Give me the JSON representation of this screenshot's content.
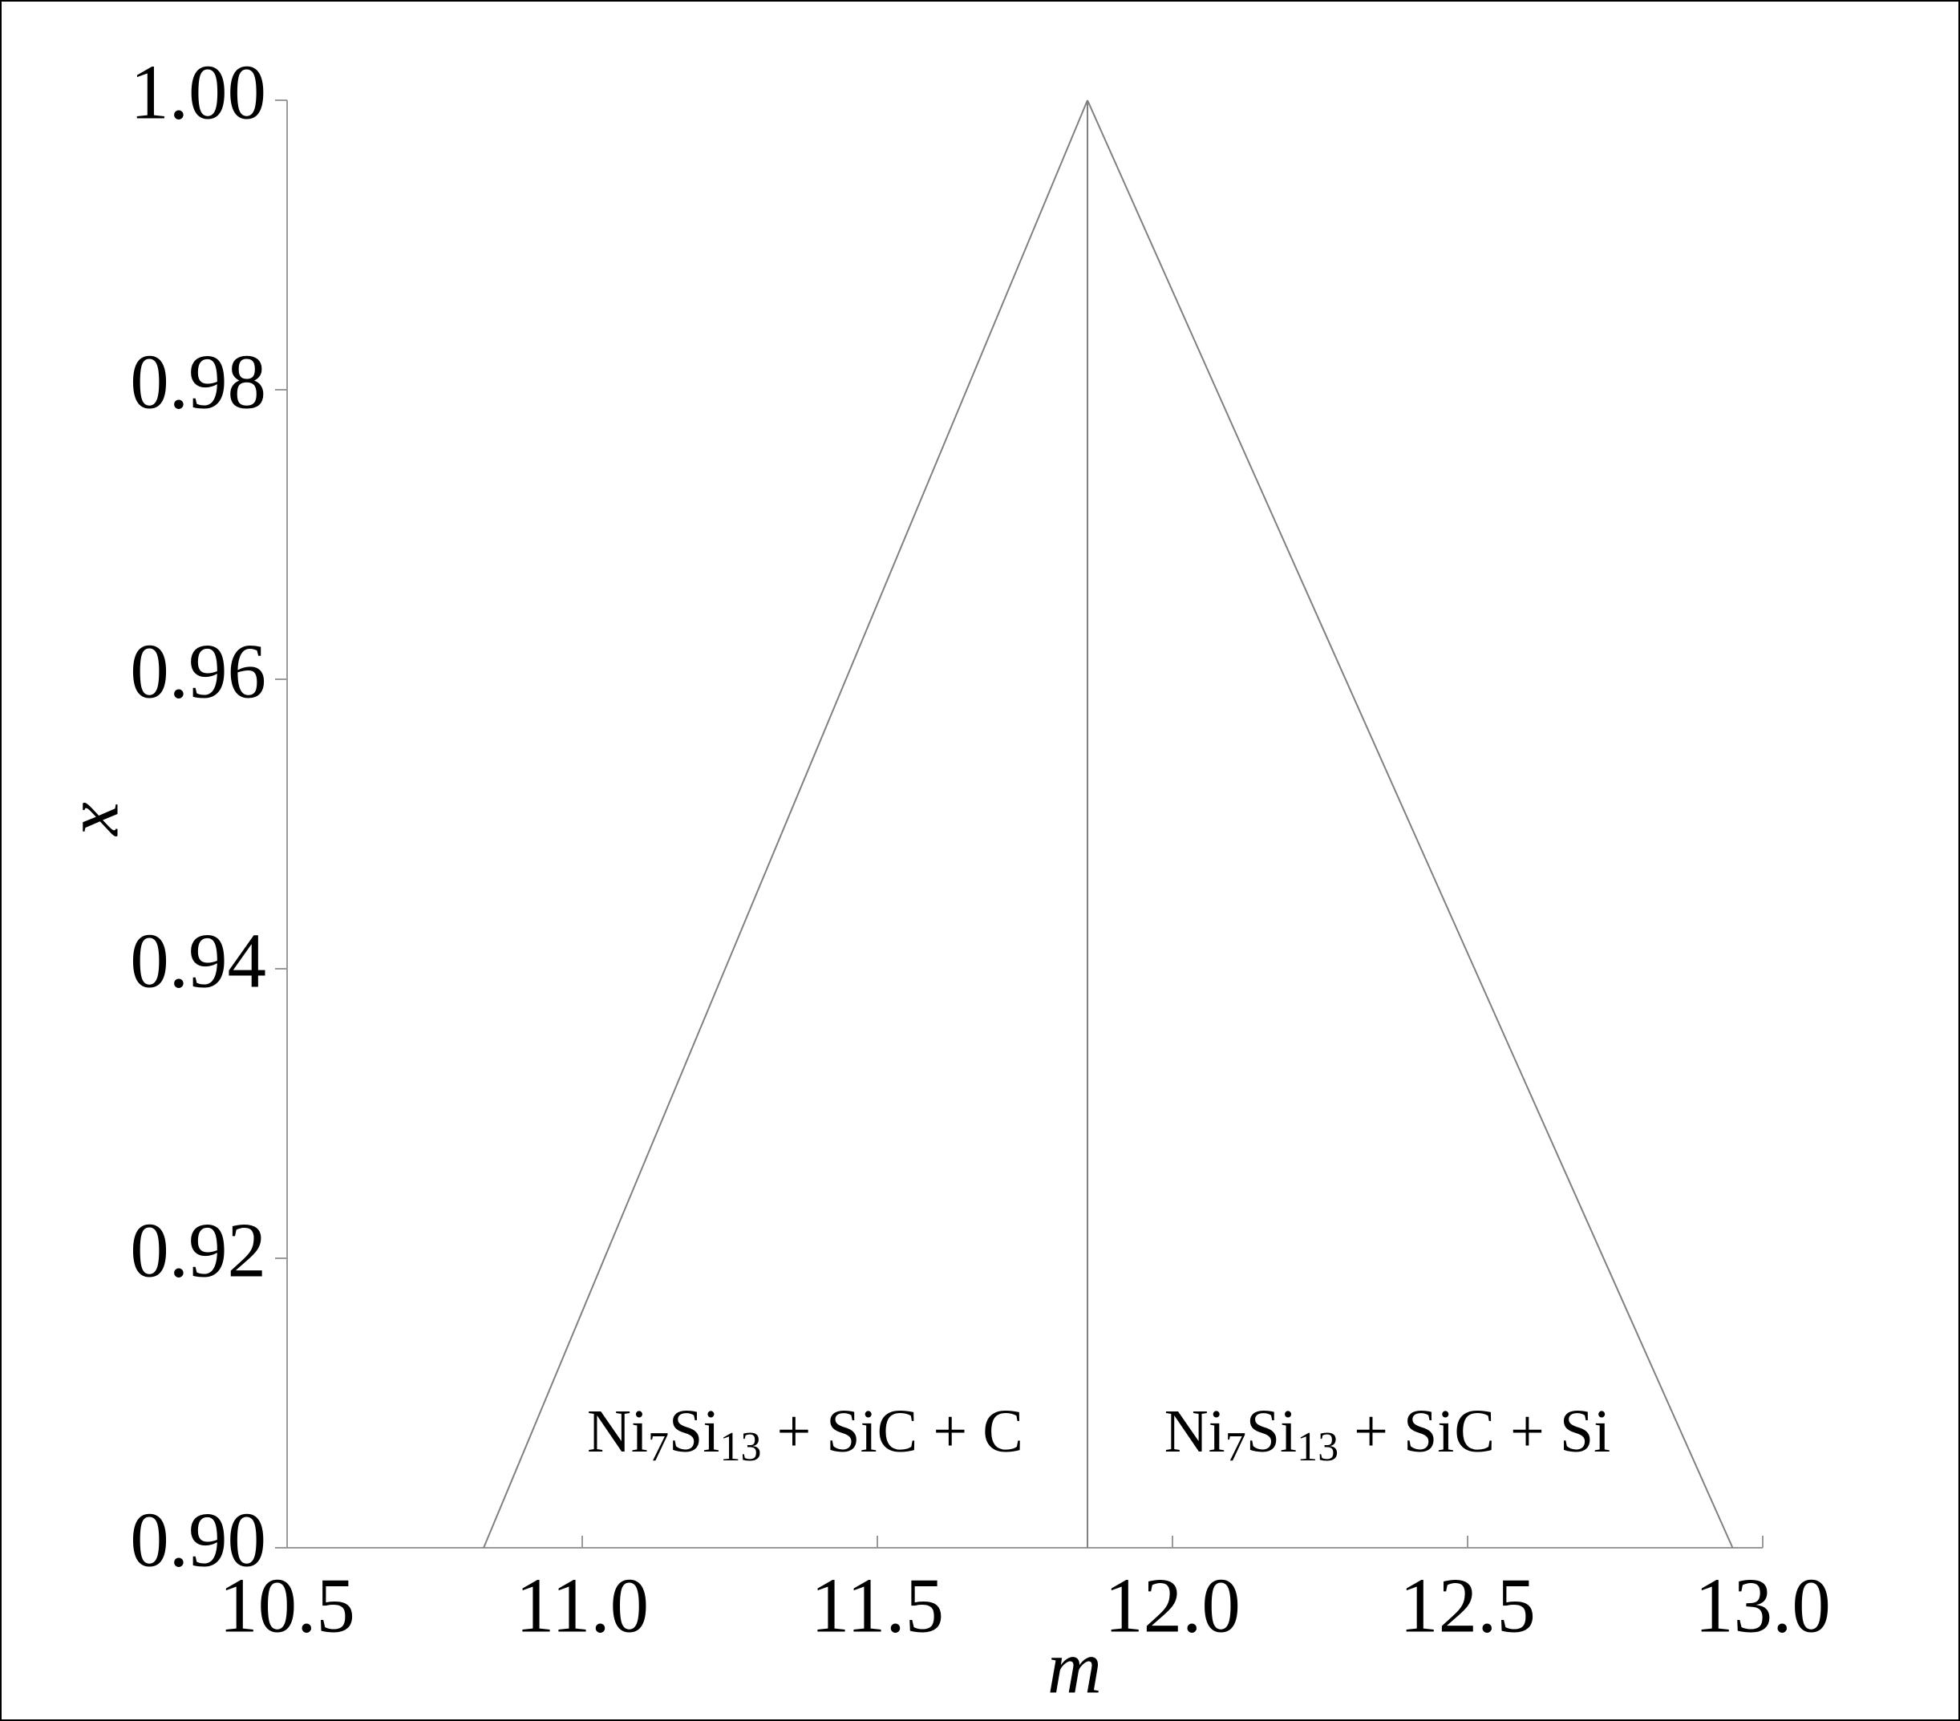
{
  "chart_data": {
    "type": "line",
    "xlabel": "m",
    "ylabel": "x",
    "xlim": [
      10.5,
      13.0
    ],
    "xticks": [
      10.5,
      {
        "value": 11,
        "label": "11.0"
      },
      11.5,
      {
        "value": 12,
        "label": "12.0"
      },
      12.5,
      {
        "value": 13,
        "label": "13.0"
      }
    ],
    "ylim": [
      0.9,
      1.0
    ],
    "yticks": [
      {
        "value": 0.9,
        "label": "0.90"
      },
      0.92,
      0.94,
      0.96,
      0.98,
      {
        "value": 1,
        "label": "1.00"
      }
    ],
    "series": [
      {
        "color": "#808080",
        "x": [
          10.833,
          11.856
        ],
        "values": [
          0.9,
          1.0
        ]
      },
      {
        "color": "#808080",
        "x": [
          11.856,
          12.949
        ],
        "values": [
          1.0,
          0.9
        ]
      },
      {
        "color": "#808080",
        "x": [
          11.856,
          11.856
        ],
        "values": [
          1.0,
          0.9
        ]
      }
    ],
    "annotations": [
      {
        "parts": [
          "Ni",
          "7",
          "Si",
          "13",
          " + SiC + C"
        ]
      },
      {
        "parts": [
          "Ni",
          "7",
          "Si",
          "13",
          " + SiC + Si"
        ]
      }
    ]
  }
}
